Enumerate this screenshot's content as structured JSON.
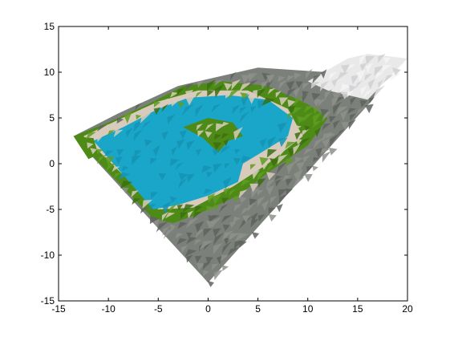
{
  "chart_data": {
    "type": "surface-3d",
    "title": "",
    "xlabel": "",
    "ylabel": "",
    "xlim": [
      -15,
      20
    ],
    "ylim": [
      -15,
      15
    ],
    "x_ticks": [
      "-15",
      "-10",
      "-5",
      "0",
      "5",
      "10",
      "15",
      "20"
    ],
    "y_ticks": [
      "15",
      "10",
      "5",
      "0",
      "-5",
      "-10",
      "-15"
    ],
    "grid": false,
    "legend": "none",
    "colors": {
      "water": "#1aa6c8",
      "water_shade": "#1593b4",
      "vegetation": "#4d8a16",
      "vegetation_dark": "#3b6e10",
      "sand": "#d8cbbb",
      "rock": "#7c807a",
      "rock_dark": "#5f635e",
      "snow": "#e9e9ea",
      "snow_shade": "#cfd0d2"
    },
    "regions": [
      {
        "name": "terrain",
        "color": "rock",
        "polygon": [
          [
            -13.5,
            3.0
          ],
          [
            0.0,
            -13.0
          ],
          [
            16.5,
            7.0
          ],
          [
            18.0,
            10.5
          ],
          [
            12.0,
            10.0
          ],
          [
            5.0,
            10.5
          ],
          [
            -3.0,
            8.5
          ],
          [
            -9.0,
            5.5
          ]
        ]
      },
      {
        "name": "snow-ridge",
        "color": "snow",
        "polygon": [
          [
            10.0,
            9.0
          ],
          [
            14.0,
            11.5
          ],
          [
            16.0,
            12.0
          ],
          [
            20.0,
            11.5
          ],
          [
            16.0,
            7.0
          ],
          [
            12.0,
            8.0
          ]
        ]
      },
      {
        "name": "vegetation-belt",
        "color": "vegetation",
        "polygon": [
          [
            -13.5,
            3.0
          ],
          [
            -10.0,
            4.5
          ],
          [
            -6.0,
            6.5
          ],
          [
            -2.5,
            8.5
          ],
          [
            1.5,
            9.0
          ],
          [
            6.0,
            8.5
          ],
          [
            10.0,
            6.5
          ],
          [
            12.0,
            5.0
          ],
          [
            10.0,
            2.0
          ],
          [
            6.0,
            -1.0
          ],
          [
            3.0,
            -3.5
          ],
          [
            -1.0,
            -5.5
          ],
          [
            -3.5,
            -6.5
          ],
          [
            -5.5,
            -6.0
          ]
        ]
      },
      {
        "name": "sand-shore",
        "color": "sand",
        "polygon": [
          [
            -12.5,
            3.0
          ],
          [
            -9.0,
            4.8
          ],
          [
            -5.0,
            6.8
          ],
          [
            -1.0,
            8.0
          ],
          [
            4.0,
            8.0
          ],
          [
            8.0,
            6.0
          ],
          [
            9.5,
            3.0
          ],
          [
            6.0,
            0.0
          ],
          [
            2.5,
            -2.5
          ],
          [
            -1.5,
            -4.8
          ],
          [
            -5.0,
            -5.0
          ]
        ]
      },
      {
        "name": "lake",
        "color": "water",
        "polygon": [
          [
            -11.5,
            2.5
          ],
          [
            -8.5,
            4.0
          ],
          [
            -5.0,
            6.0
          ],
          [
            -2.0,
            7.2
          ],
          [
            2.0,
            7.5
          ],
          [
            6.0,
            7.0
          ],
          [
            8.5,
            5.0
          ],
          [
            8.0,
            3.0
          ],
          [
            5.0,
            1.0
          ],
          [
            3.5,
            0.0
          ],
          [
            3.0,
            -2.0
          ],
          [
            0.0,
            -3.5
          ],
          [
            -3.0,
            -4.5
          ],
          [
            -5.5,
            -5.0
          ]
        ]
      },
      {
        "name": "island",
        "color": "vegetation",
        "polygon": [
          [
            -2.5,
            4.0
          ],
          [
            0.0,
            5.0
          ],
          [
            2.5,
            4.5
          ],
          [
            3.5,
            3.0
          ],
          [
            2.0,
            2.5
          ],
          [
            1.0,
            1.2
          ],
          [
            -0.5,
            2.8
          ]
        ]
      },
      {
        "name": "west-inlet-veg",
        "color": "vegetation",
        "polygon": [
          [
            -13.5,
            3.0
          ],
          [
            -11.5,
            2.8
          ],
          [
            -11.0,
            1.0
          ],
          [
            -12.0,
            0.5
          ]
        ]
      }
    ]
  }
}
